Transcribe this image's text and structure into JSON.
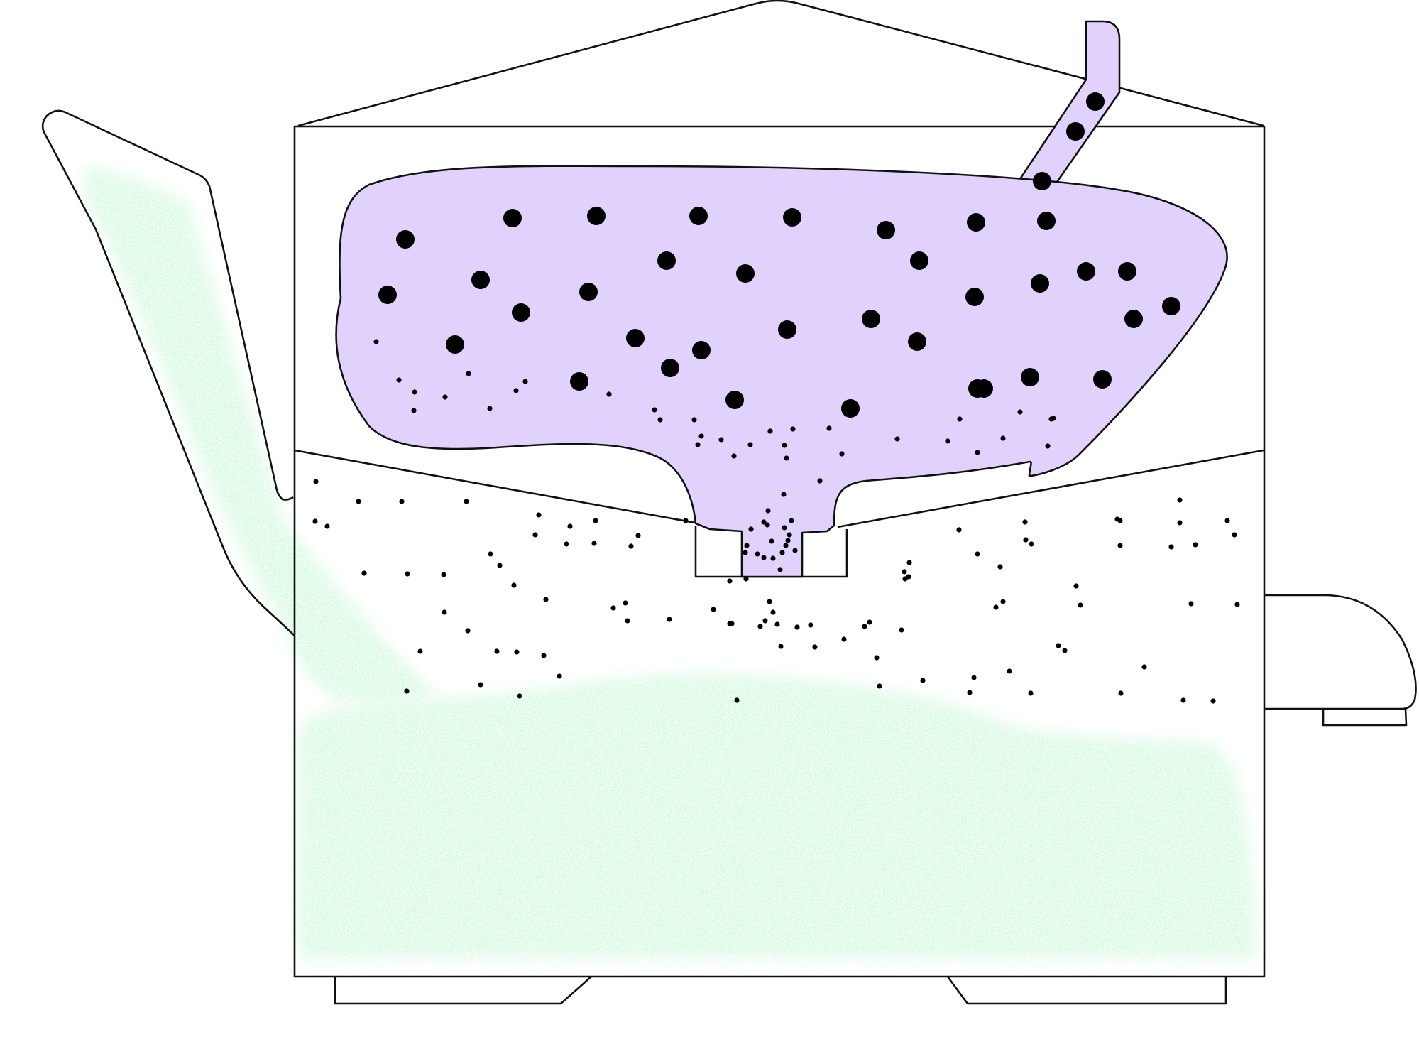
{
  "diagram": {
    "kind": "teapot-cross-section-with-infuser",
    "labels": [],
    "colors": {
      "outline": "#111111",
      "infuser_fill": "#e0d2fd",
      "tea_liquid": "#8df0a6",
      "particles": "#000000",
      "background": "#ffffff"
    },
    "components": {
      "pot_body": "pot-body",
      "lid": "lid",
      "spout": "spout",
      "handle": "handle",
      "base_feet": "base-feet",
      "infuser_basket": "infuser-basket",
      "infuser_tube": "infuser-tube",
      "strainer_seat": "strainer-seat",
      "brewed_tea": "brewed-tea-liquid",
      "tea_leaves": "tea-leaf-particles",
      "fine_particles": "fine-tea-particles"
    }
  }
}
